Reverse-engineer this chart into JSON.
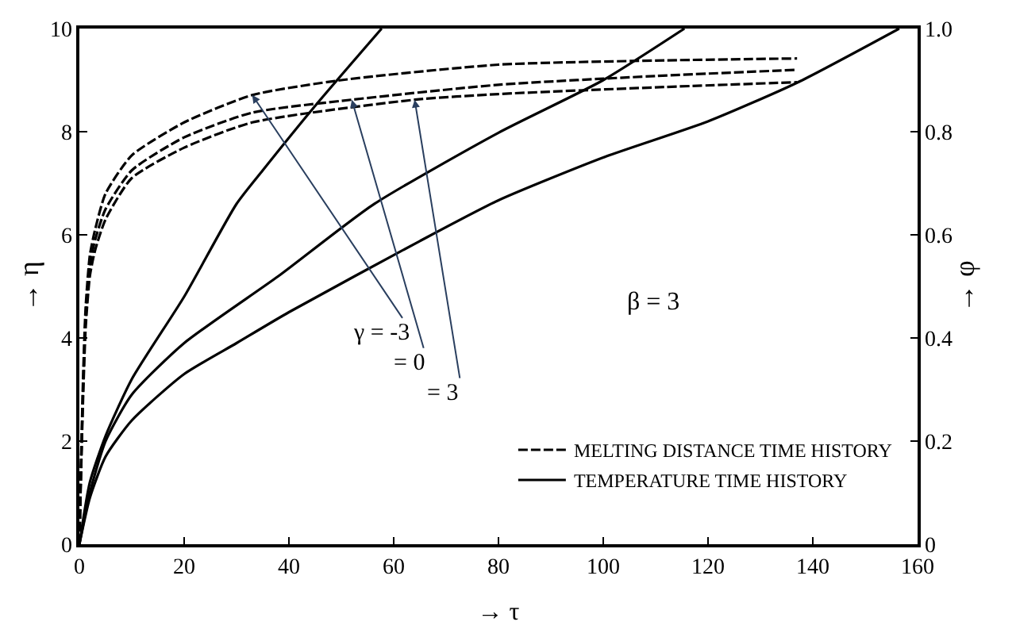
{
  "chart_data": {
    "type": "line",
    "xlabel": "→ τ",
    "ylabel": "→ η",
    "y2label": "→ φ",
    "xlim": [
      0,
      160
    ],
    "xticks": [
      0,
      20,
      40,
      60,
      80,
      100,
      120,
      140,
      160
    ],
    "ylim": [
      0,
      10
    ],
    "yticks": [
      0,
      2,
      4,
      6,
      8,
      10
    ],
    "y2lim": [
      0,
      1
    ],
    "y2ticks": [
      0,
      0.2,
      0.4,
      0.6,
      0.8,
      {
        "value": 1,
        "label": "1.0"
      }
    ],
    "legend": "bottom right",
    "marker": "none",
    "series": [
      {
        "name": "MELTING DISTANCE TIME HISTORY",
        "color": "#000000",
        "line_style": "dashed",
        "x": [
          0,
          0.3,
          0.7,
          1.2,
          2,
          3,
          5,
          10,
          20,
          33,
          50,
          80,
          110,
          137
        ],
        "values": [
          0,
          1.5,
          3.2,
          4.6,
          5.6,
          6.1,
          6.8,
          7.54,
          8.18,
          8.71,
          9.0,
          9.3,
          9.38,
          9.42
        ]
      },
      {
        "color": "#000000",
        "line_style": "dashed",
        "x": [
          0,
          0.3,
          0.7,
          1.2,
          2,
          3,
          5,
          10,
          20,
          33,
          52,
          80,
          110,
          137
        ],
        "values": [
          0,
          1.4,
          3.0,
          4.4,
          5.4,
          5.9,
          6.5,
          7.25,
          7.89,
          8.37,
          8.62,
          8.91,
          9.08,
          9.2
        ]
      },
      {
        "color": "#000000",
        "line_style": "dashed",
        "x": [
          0,
          0.3,
          0.7,
          1.2,
          2,
          3,
          5,
          10,
          20,
          33,
          64,
          80,
          110,
          137
        ],
        "values": [
          0,
          1.3,
          2.8,
          4.2,
          5.2,
          5.7,
          6.3,
          7.1,
          7.69,
          8.18,
          8.62,
          8.73,
          8.86,
          8.96
        ]
      },
      {
        "name": "TEMPERATURE TIME HISTORY",
        "color": "#000000",
        "line_style": "solid",
        "axis": "y2",
        "x": [
          0,
          2,
          5,
          10,
          20,
          30,
          35,
          45,
          57.7
        ],
        "values": [
          0,
          0.12,
          0.21,
          0.32,
          0.48,
          0.66,
          0.725,
          0.85,
          1.0
        ]
      },
      {
        "color": "#000000",
        "line_style": "solid",
        "axis": "y2",
        "x": [
          0,
          2,
          5,
          10,
          20,
          38,
          56,
          80,
          100,
          115.5
        ],
        "values": [
          0,
          0.1,
          0.2,
          0.29,
          0.39,
          0.52,
          0.658,
          0.798,
          0.9,
          1.0
        ]
      },
      {
        "color": "#000000",
        "line_style": "solid",
        "axis": "y2",
        "x": [
          0,
          2,
          5,
          10,
          20,
          30,
          40,
          65,
          80,
          100,
          120,
          137,
          156.5
        ],
        "values": [
          0,
          0.09,
          0.17,
          0.24,
          0.33,
          0.39,
          0.45,
          0.588,
          0.667,
          0.75,
          0.82,
          0.895,
          1.0
        ]
      }
    ],
    "annotations": [
      {
        "text": "γ = -3",
        "x": 33,
        "y": 8.71
      },
      {
        "text": "= 0",
        "x": 52,
        "y": 8.62
      },
      {
        "text": "= 3",
        "x": 64,
        "y": 8.62
      },
      "β = 3"
    ]
  }
}
